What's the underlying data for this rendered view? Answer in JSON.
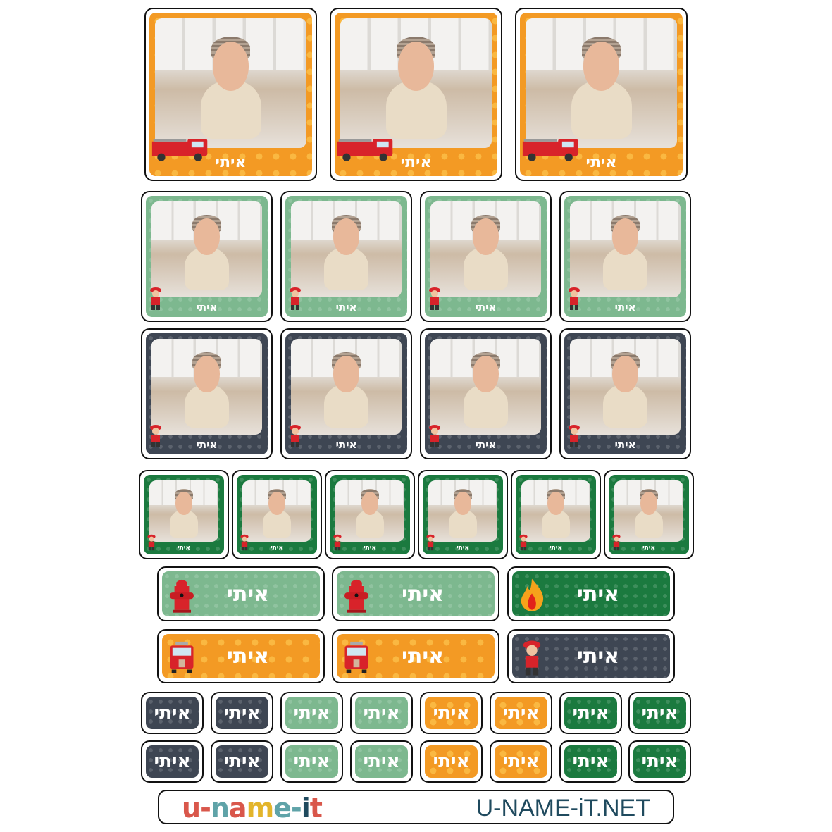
{
  "sticker_name": "איתי",
  "colors": {
    "orange": "#f39a24",
    "light_green": "#7db88f",
    "dark_slate": "#3e4653",
    "dark_green": "#1b7a3f"
  },
  "rows": [
    {
      "kind": "photo",
      "color": "orange",
      "icon": "fire-truck-icon",
      "count": 3
    },
    {
      "kind": "photo",
      "color": "light_green",
      "icon": "firefighter-icon",
      "count": 4
    },
    {
      "kind": "photo",
      "color": "dark_slate",
      "icon": "firefighter-icon",
      "count": 4
    },
    {
      "kind": "photo",
      "color": "dark_green",
      "icon": "firefighter-icon",
      "count": 6
    },
    {
      "kind": "label",
      "items": [
        {
          "color": "light_green",
          "icon": "fire-hydrant-icon"
        },
        {
          "color": "light_green",
          "icon": "fire-hydrant-icon"
        },
        {
          "color": "dark_green",
          "icon": "flame-icon"
        }
      ]
    },
    {
      "kind": "label",
      "items": [
        {
          "color": "orange",
          "icon": "fire-truck-front-icon"
        },
        {
          "color": "orange",
          "icon": "fire-truck-front-icon"
        },
        {
          "color": "dark_slate",
          "icon": "firefighter-icon"
        }
      ]
    },
    {
      "kind": "mini",
      "colors": [
        "dark_slate",
        "dark_slate",
        "light_green",
        "light_green",
        "orange",
        "orange",
        "dark_green",
        "dark_green"
      ]
    },
    {
      "kind": "mini",
      "colors": [
        "dark_slate",
        "dark_slate",
        "light_green",
        "light_green",
        "orange",
        "orange",
        "dark_green",
        "dark_green"
      ]
    }
  ],
  "footer": {
    "logo": "u-name-it",
    "website": "U-NAME-iT.NET"
  }
}
